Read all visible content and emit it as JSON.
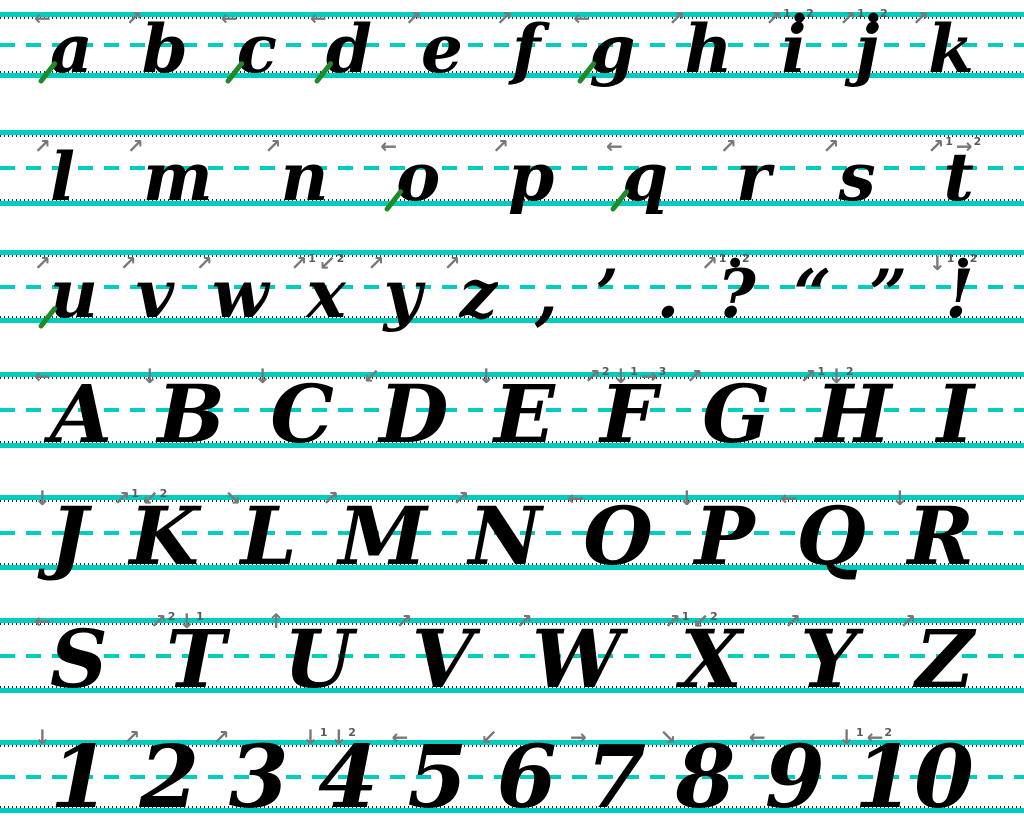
{
  "colors": {
    "guideline_teal": "#00CDC0",
    "letter_ink": "#000000",
    "entry_stroke_green": "#1E8B28",
    "stroke_arrow_gray": "#787878"
  },
  "rows": [
    {
      "name": "lowercase-a-to-k",
      "type": "lowercase",
      "glyphs": [
        {
          "char": "a",
          "name": "letter-a",
          "green_entry": true,
          "marks": [
            {
              "type": "arrow",
              "dir": "W"
            }
          ]
        },
        {
          "char": "b",
          "name": "letter-b",
          "marks": [
            {
              "type": "arrow",
              "dir": "NE"
            }
          ]
        },
        {
          "char": "c",
          "name": "letter-c",
          "green_entry": true,
          "marks": [
            {
              "type": "arrow",
              "dir": "W"
            }
          ]
        },
        {
          "char": "d",
          "name": "letter-d",
          "green_entry": true,
          "marks": [
            {
              "type": "arrow",
              "dir": "W"
            }
          ]
        },
        {
          "char": "e",
          "name": "letter-e",
          "marks": [
            {
              "type": "arrow",
              "dir": "NE"
            }
          ]
        },
        {
          "char": "f",
          "name": "letter-f",
          "marks": [
            {
              "type": "arrow",
              "dir": "NE"
            }
          ]
        },
        {
          "char": "g",
          "name": "letter-g",
          "green_entry": true,
          "marks": [
            {
              "type": "arrow",
              "dir": "W"
            }
          ]
        },
        {
          "char": "h",
          "name": "letter-h",
          "marks": [
            {
              "type": "arrow",
              "dir": "NE"
            }
          ]
        },
        {
          "char": "i",
          "name": "letter-i",
          "marks": [
            {
              "type": "arrow",
              "dir": "NE",
              "num": "1"
            },
            {
              "type": "dot",
              "num": "2"
            }
          ]
        },
        {
          "char": "j",
          "name": "letter-j",
          "marks": [
            {
              "type": "arrow",
              "dir": "NE",
              "num": "1"
            },
            {
              "type": "dot",
              "num": "2"
            }
          ]
        },
        {
          "char": "k",
          "name": "letter-k",
          "marks": [
            {
              "type": "arrow",
              "dir": "NE"
            }
          ]
        }
      ]
    },
    {
      "name": "lowercase-l-to-t",
      "type": "lowercase",
      "glyphs": [
        {
          "char": "l",
          "name": "letter-l",
          "marks": [
            {
              "type": "arrow",
              "dir": "NE"
            }
          ]
        },
        {
          "char": "m",
          "name": "letter-m",
          "marks": [
            {
              "type": "arrow",
              "dir": "NE"
            }
          ]
        },
        {
          "char": "n",
          "name": "letter-n",
          "marks": [
            {
              "type": "arrow",
              "dir": "NE"
            }
          ]
        },
        {
          "char": "o",
          "name": "letter-o",
          "green_entry": true,
          "marks": [
            {
              "type": "arrow",
              "dir": "W"
            }
          ]
        },
        {
          "char": "p",
          "name": "letter-p",
          "marks": [
            {
              "type": "arrow",
              "dir": "NE"
            }
          ]
        },
        {
          "char": "q",
          "name": "letter-q",
          "green_entry": true,
          "marks": [
            {
              "type": "arrow",
              "dir": "W"
            }
          ]
        },
        {
          "char": "r",
          "name": "letter-r",
          "marks": [
            {
              "type": "arrow",
              "dir": "NE"
            }
          ]
        },
        {
          "char": "s",
          "name": "letter-s",
          "marks": [
            {
              "type": "arrow",
              "dir": "NE"
            }
          ]
        },
        {
          "char": "t",
          "name": "letter-t",
          "marks": [
            {
              "type": "arrow",
              "dir": "NE",
              "num": "1"
            },
            {
              "type": "arrow",
              "dir": "E",
              "num": "2"
            }
          ]
        }
      ]
    },
    {
      "name": "lowercase-u-to-z-and-punctuation",
      "type": "lowercase",
      "glyphs": [
        {
          "char": "u",
          "name": "letter-u",
          "green_entry": true,
          "marks": [
            {
              "type": "arrow",
              "dir": "NE"
            }
          ]
        },
        {
          "char": "v",
          "name": "letter-v",
          "marks": [
            {
              "type": "arrow",
              "dir": "NE"
            }
          ]
        },
        {
          "char": "w",
          "name": "letter-w",
          "marks": [
            {
              "type": "arrow",
              "dir": "NE"
            }
          ]
        },
        {
          "char": "x",
          "name": "letter-x",
          "marks": [
            {
              "type": "arrow",
              "dir": "NE",
              "num": "1"
            },
            {
              "type": "arrow",
              "dir": "SW",
              "num": "2"
            }
          ]
        },
        {
          "char": "y",
          "name": "letter-y",
          "marks": [
            {
              "type": "arrow",
              "dir": "NE"
            }
          ]
        },
        {
          "char": "z",
          "name": "letter-z",
          "marks": [
            {
              "type": "arrow",
              "dir": "NE"
            }
          ]
        },
        {
          "char": ",",
          "name": "comma"
        },
        {
          "char": "’",
          "name": "apostrophe"
        },
        {
          "char": ".",
          "name": "period"
        },
        {
          "char": "?",
          "name": "question-mark",
          "marks": [
            {
              "type": "arrow",
              "dir": "NE",
              "num": "1"
            },
            {
              "type": "dot",
              "num": "2"
            }
          ]
        },
        {
          "char": "“",
          "name": "opening-quote"
        },
        {
          "char": "”",
          "name": "closing-quote"
        },
        {
          "char": "!",
          "name": "exclamation-point",
          "marks": [
            {
              "type": "arrow",
              "dir": "S",
              "num": "1"
            },
            {
              "type": "dot",
              "num": "2"
            }
          ]
        }
      ]
    },
    {
      "name": "uppercase-A-to-I",
      "type": "uppercase",
      "glyphs": [
        {
          "char": "A",
          "name": "letter-A",
          "marks": [
            {
              "type": "arrow",
              "dir": "W"
            }
          ]
        },
        {
          "char": "B",
          "name": "letter-B",
          "marks": [
            {
              "type": "arrow",
              "dir": "S"
            }
          ]
        },
        {
          "char": "C",
          "name": "letter-C",
          "marks": [
            {
              "type": "arrow",
              "dir": "S"
            }
          ]
        },
        {
          "char": "D",
          "name": "letter-D",
          "marks": [
            {
              "type": "arrow",
              "dir": "SW"
            }
          ]
        },
        {
          "char": "E",
          "name": "letter-E",
          "marks": [
            {
              "type": "arrow",
              "dir": "S"
            }
          ]
        },
        {
          "char": "F",
          "name": "letter-F",
          "marks": [
            {
              "type": "arrow",
              "dir": "NE",
              "num": "2"
            },
            {
              "type": "arrow",
              "dir": "S",
              "num": "1"
            },
            {
              "type": "arrow",
              "dir": "E",
              "num": "3"
            }
          ]
        },
        {
          "char": "G",
          "name": "letter-G",
          "marks": [
            {
              "type": "arrow",
              "dir": "NE"
            }
          ]
        },
        {
          "char": "H",
          "name": "letter-H",
          "marks": [
            {
              "type": "arrow",
              "dir": "NE",
              "num": "1"
            },
            {
              "type": "arrow",
              "dir": "S",
              "num": "2"
            }
          ]
        },
        {
          "char": "I",
          "name": "letter-I"
        }
      ]
    },
    {
      "name": "uppercase-J-to-R",
      "type": "uppercase",
      "glyphs": [
        {
          "char": "J",
          "name": "letter-J",
          "marks": [
            {
              "type": "arrow",
              "dir": "S"
            }
          ]
        },
        {
          "char": "K",
          "name": "letter-K",
          "marks": [
            {
              "type": "arrow",
              "dir": "NE",
              "num": "1"
            },
            {
              "type": "arrow",
              "dir": "SW",
              "num": "2"
            }
          ]
        },
        {
          "char": "L",
          "name": "letter-L",
          "marks": [
            {
              "type": "arrow",
              "dir": "SE"
            }
          ]
        },
        {
          "char": "M",
          "name": "letter-M",
          "marks": [
            {
              "type": "arrow",
              "dir": "NE"
            }
          ]
        },
        {
          "char": "N",
          "name": "letter-N",
          "marks": [
            {
              "type": "arrow",
              "dir": "NE"
            }
          ]
        },
        {
          "char": "O",
          "name": "letter-O",
          "marks": [
            {
              "type": "arrow",
              "dir": "W"
            }
          ]
        },
        {
          "char": "P",
          "name": "letter-P",
          "marks": [
            {
              "type": "arrow",
              "dir": "S"
            }
          ]
        },
        {
          "char": "Q",
          "name": "letter-Q",
          "marks": [
            {
              "type": "arrow",
              "dir": "W"
            }
          ]
        },
        {
          "char": "R",
          "name": "letter-R",
          "marks": [
            {
              "type": "arrow",
              "dir": "S"
            }
          ]
        }
      ]
    },
    {
      "name": "uppercase-S-to-Z",
      "type": "uppercase",
      "glyphs": [
        {
          "char": "S",
          "name": "letter-S",
          "marks": [
            {
              "type": "arrow",
              "dir": "W"
            }
          ]
        },
        {
          "char": "T",
          "name": "letter-T",
          "marks": [
            {
              "type": "arrow",
              "dir": "NE",
              "num": "2"
            },
            {
              "type": "arrow",
              "dir": "S",
              "num": "1"
            }
          ]
        },
        {
          "char": "U",
          "name": "letter-U",
          "marks": [
            {
              "type": "arrow",
              "dir": "N"
            }
          ]
        },
        {
          "char": "V",
          "name": "letter-V",
          "marks": [
            {
              "type": "arrow",
              "dir": "NE"
            }
          ]
        },
        {
          "char": "W",
          "name": "letter-W",
          "marks": [
            {
              "type": "arrow",
              "dir": "NE"
            }
          ]
        },
        {
          "char": "X",
          "name": "letter-X",
          "marks": [
            {
              "type": "arrow",
              "dir": "NE",
              "num": "1"
            },
            {
              "type": "arrow",
              "dir": "SW",
              "num": "2"
            }
          ]
        },
        {
          "char": "Y",
          "name": "letter-Y",
          "marks": [
            {
              "type": "arrow",
              "dir": "NE"
            }
          ]
        },
        {
          "char": "Z",
          "name": "letter-Z",
          "marks": [
            {
              "type": "arrow",
              "dir": "NE"
            }
          ]
        }
      ]
    },
    {
      "name": "numbers-1-to-10",
      "type": "numbers",
      "glyphs": [
        {
          "char": "1",
          "name": "number-1",
          "marks": [
            {
              "type": "arrow",
              "dir": "S"
            }
          ]
        },
        {
          "char": "2",
          "name": "number-2",
          "marks": [
            {
              "type": "arrow",
              "dir": "NE"
            }
          ]
        },
        {
          "char": "3",
          "name": "number-3",
          "marks": [
            {
              "type": "arrow",
              "dir": "NE"
            }
          ]
        },
        {
          "char": "4",
          "name": "number-4",
          "marks": [
            {
              "type": "arrow",
              "dir": "S",
              "num": "1"
            },
            {
              "type": "arrow",
              "dir": "S",
              "num": "2"
            }
          ]
        },
        {
          "char": "5",
          "name": "number-5",
          "marks": [
            {
              "type": "arrow",
              "dir": "W"
            }
          ]
        },
        {
          "char": "6",
          "name": "number-6",
          "marks": [
            {
              "type": "arrow",
              "dir": "SW"
            }
          ]
        },
        {
          "char": "7",
          "name": "number-7",
          "marks": [
            {
              "type": "arrow",
              "dir": "E"
            }
          ]
        },
        {
          "char": "8",
          "name": "number-8",
          "marks": [
            {
              "type": "arrow",
              "dir": "SE"
            }
          ]
        },
        {
          "char": "9",
          "name": "number-9",
          "marks": [
            {
              "type": "arrow",
              "dir": "W"
            }
          ]
        },
        {
          "char": "10",
          "name": "number-10",
          "marks": [
            {
              "type": "arrow",
              "dir": "S",
              "num": "1"
            },
            {
              "type": "arrow",
              "dir": "W",
              "num": "2"
            }
          ]
        }
      ]
    }
  ]
}
